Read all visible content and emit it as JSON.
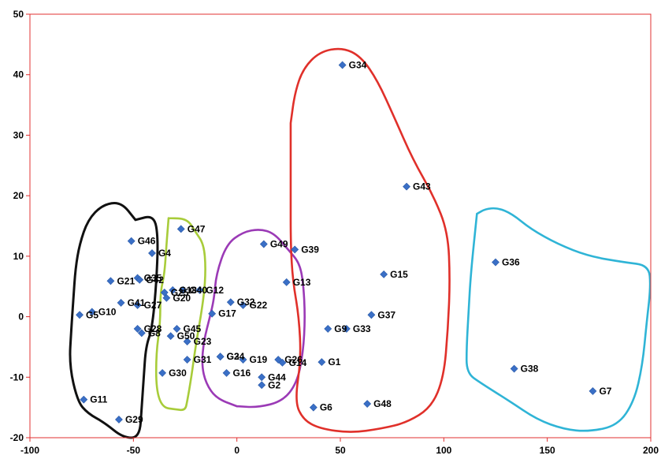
{
  "chart_data": {
    "type": "scatter",
    "title": "",
    "xlabel": "",
    "ylabel": "",
    "xlim": [
      -100,
      200
    ],
    "ylim": [
      -20,
      50
    ],
    "x_ticks": [
      -100,
      -50,
      0,
      50,
      100,
      150,
      200
    ],
    "y_ticks": [
      -20,
      -10,
      0,
      10,
      20,
      30,
      40,
      50
    ],
    "grid": false,
    "marker": "diamond",
    "marker_color": "#3a6fc6",
    "axis_color": "#e03030",
    "points": [
      {
        "label": "G1",
        "x": 41,
        "y": -7.5
      },
      {
        "label": "G2",
        "x": 12,
        "y": -11.3
      },
      {
        "label": "G3",
        "x": -8,
        "y": -6.6
      },
      {
        "label": "G4",
        "x": -41,
        "y": 10.5
      },
      {
        "label": "G5",
        "x": -76,
        "y": 0.3
      },
      {
        "label": "G6",
        "x": 37,
        "y": -15
      },
      {
        "label": "G7",
        "x": 172,
        "y": -12.3
      },
      {
        "label": "G8",
        "x": -46,
        "y": -2.7
      },
      {
        "label": "G9",
        "x": 44,
        "y": -2
      },
      {
        "label": "G10",
        "x": -70,
        "y": 0.8
      },
      {
        "label": "G11",
        "x": -74,
        "y": -13.7
      },
      {
        "label": "G12",
        "x": -18,
        "y": 4.4
      },
      {
        "label": "G13",
        "x": 24,
        "y": 5.7
      },
      {
        "label": "G14",
        "x": 22,
        "y": -7.6
      },
      {
        "label": "G15",
        "x": 71,
        "y": 7
      },
      {
        "label": "G16",
        "x": -5,
        "y": -9.3
      },
      {
        "label": "G17",
        "x": -12,
        "y": 0.5
      },
      {
        "label": "G18",
        "x": -31,
        "y": 4.4
      },
      {
        "label": "G19",
        "x": 3,
        "y": -7.1
      },
      {
        "label": "G20",
        "x": -34,
        "y": 3.1
      },
      {
        "label": "G21",
        "x": -61,
        "y": 5.9
      },
      {
        "label": "G22",
        "x": 3,
        "y": 1.9
      },
      {
        "label": "G23",
        "x": -24,
        "y": -4.1
      },
      {
        "label": "G24",
        "x": -8,
        "y": -6.6
      },
      {
        "label": "G25",
        "x": -35,
        "y": 4
      },
      {
        "label": "G26",
        "x": 20,
        "y": -7.1
      },
      {
        "label": "G27",
        "x": -48,
        "y": 1.9
      },
      {
        "label": "G28",
        "x": -48,
        "y": -2
      },
      {
        "label": "G29",
        "x": -57,
        "y": -17
      },
      {
        "label": "G30",
        "x": -36,
        "y": -9.3
      },
      {
        "label": "G31",
        "x": -24,
        "y": -7.1
      },
      {
        "label": "G32",
        "x": -3,
        "y": 2.4
      },
      {
        "label": "G33",
        "x": 53,
        "y": -2
      },
      {
        "label": "G34",
        "x": 51,
        "y": 41.6
      },
      {
        "label": "G35",
        "x": -48,
        "y": 6.4
      },
      {
        "label": "G36",
        "x": 125,
        "y": 9
      },
      {
        "label": "G37",
        "x": 65,
        "y": 0.3
      },
      {
        "label": "G38",
        "x": 134,
        "y": -8.6
      },
      {
        "label": "G39",
        "x": 28,
        "y": 11.1
      },
      {
        "label": "G40",
        "x": -26,
        "y": 4.4
      },
      {
        "label": "G41",
        "x": -56,
        "y": 2.3
      },
      {
        "label": "G42",
        "x": -47,
        "y": 6.1
      },
      {
        "label": "G43",
        "x": 82,
        "y": 21.5
      },
      {
        "label": "G44",
        "x": 12,
        "y": -10
      },
      {
        "label": "G45",
        "x": -29,
        "y": -2
      },
      {
        "label": "G46",
        "x": -51,
        "y": 12.5
      },
      {
        "label": "G47",
        "x": -27,
        "y": 14.5
      },
      {
        "label": "G48",
        "x": 63,
        "y": -14.4
      },
      {
        "label": "G49",
        "x": 13,
        "y": 12
      },
      {
        "label": "G50",
        "x": -32,
        "y": -3.2
      }
    ],
    "clusters": [
      {
        "color": "#111111",
        "outline": [
          [
            -49,
            16
          ],
          [
            -40,
            16.8
          ],
          [
            -38,
            13
          ],
          [
            -39,
            5
          ],
          [
            -41,
            -2
          ],
          [
            -44,
            -5
          ],
          [
            -45,
            -10
          ],
          [
            -46,
            -15
          ],
          [
            -47,
            -20
          ],
          [
            -55,
            -20
          ],
          [
            -64,
            -17.5
          ],
          [
            -72,
            -16
          ],
          [
            -77,
            -14
          ],
          [
            -81,
            -8
          ],
          [
            -80,
            -2
          ],
          [
            -79,
            3
          ],
          [
            -78,
            8
          ],
          [
            -76,
            12
          ],
          [
            -72,
            16
          ],
          [
            -65,
            18.5
          ],
          [
            -56,
            19
          ],
          [
            -49,
            16
          ]
        ]
      },
      {
        "color": "#a8cc3a",
        "outline": [
          [
            -33,
            16.3
          ],
          [
            -24,
            16.2
          ],
          [
            -20,
            14
          ],
          [
            -16,
            12
          ],
          [
            -15,
            8
          ],
          [
            -16,
            3
          ],
          [
            -20,
            -5
          ],
          [
            -22,
            -10
          ],
          [
            -24,
            -14
          ],
          [
            -25,
            -15.5
          ],
          [
            -30,
            -15.3
          ],
          [
            -36,
            -15
          ],
          [
            -39,
            -12
          ],
          [
            -39,
            -6
          ],
          [
            -37,
            -1
          ],
          [
            -37,
            4
          ],
          [
            -35,
            7
          ],
          [
            -34,
            12
          ],
          [
            -33,
            16.3
          ]
        ]
      },
      {
        "color": "#9b3ab6",
        "outline": [
          [
            0,
            -14.8
          ],
          [
            -10,
            -13.5
          ],
          [
            -15,
            -11
          ],
          [
            -17,
            -8
          ],
          [
            -16,
            -4
          ],
          [
            -13,
            0
          ],
          [
            -11,
            3
          ],
          [
            -10,
            7
          ],
          [
            -5,
            12
          ],
          [
            3,
            14
          ],
          [
            11,
            14.5
          ],
          [
            18,
            13.8
          ],
          [
            25,
            11
          ],
          [
            30,
            9
          ],
          [
            32,
            6
          ],
          [
            33,
            0
          ],
          [
            32,
            -6
          ],
          [
            29,
            -11
          ],
          [
            22,
            -14
          ],
          [
            10,
            -15
          ],
          [
            0,
            -14.8
          ]
        ]
      },
      {
        "color": "#e0302a",
        "outline": [
          [
            26,
            32
          ],
          [
            28,
            37
          ],
          [
            32,
            41
          ],
          [
            40,
            43.8
          ],
          [
            51,
            44.5
          ],
          [
            60,
            43
          ],
          [
            68,
            39
          ],
          [
            76,
            33
          ],
          [
            85,
            26
          ],
          [
            95,
            20
          ],
          [
            102,
            14
          ],
          [
            103,
            6
          ],
          [
            102,
            -2
          ],
          [
            100,
            -10
          ],
          [
            94,
            -15
          ],
          [
            82,
            -17.5
          ],
          [
            70,
            -18.5
          ],
          [
            55,
            -19.2
          ],
          [
            40,
            -18.5
          ],
          [
            32,
            -17
          ],
          [
            28,
            -14
          ],
          [
            31,
            -7
          ],
          [
            30,
            0
          ],
          [
            27,
            6
          ],
          [
            26,
            12
          ],
          [
            26,
            20
          ],
          [
            26,
            32
          ]
        ]
      },
      {
        "color": "#2fb4d6",
        "outline": [
          [
            116,
            17
          ],
          [
            120,
            17.8
          ],
          [
            126,
            18
          ],
          [
            133,
            17
          ],
          [
            142,
            14.5
          ],
          [
            155,
            12
          ],
          [
            170,
            10
          ],
          [
            187,
            9
          ],
          [
            199,
            8.5
          ],
          [
            200,
            5
          ],
          [
            198,
            -1
          ],
          [
            196,
            -8
          ],
          [
            192,
            -14
          ],
          [
            184,
            -18
          ],
          [
            170,
            -19
          ],
          [
            158,
            -18.6
          ],
          [
            145,
            -17
          ],
          [
            132,
            -14
          ],
          [
            118,
            -11
          ],
          [
            111,
            -9.3
          ],
          [
            111,
            -5
          ],
          [
            112,
            1
          ],
          [
            113,
            7
          ],
          [
            116,
            17
          ]
        ]
      }
    ]
  }
}
